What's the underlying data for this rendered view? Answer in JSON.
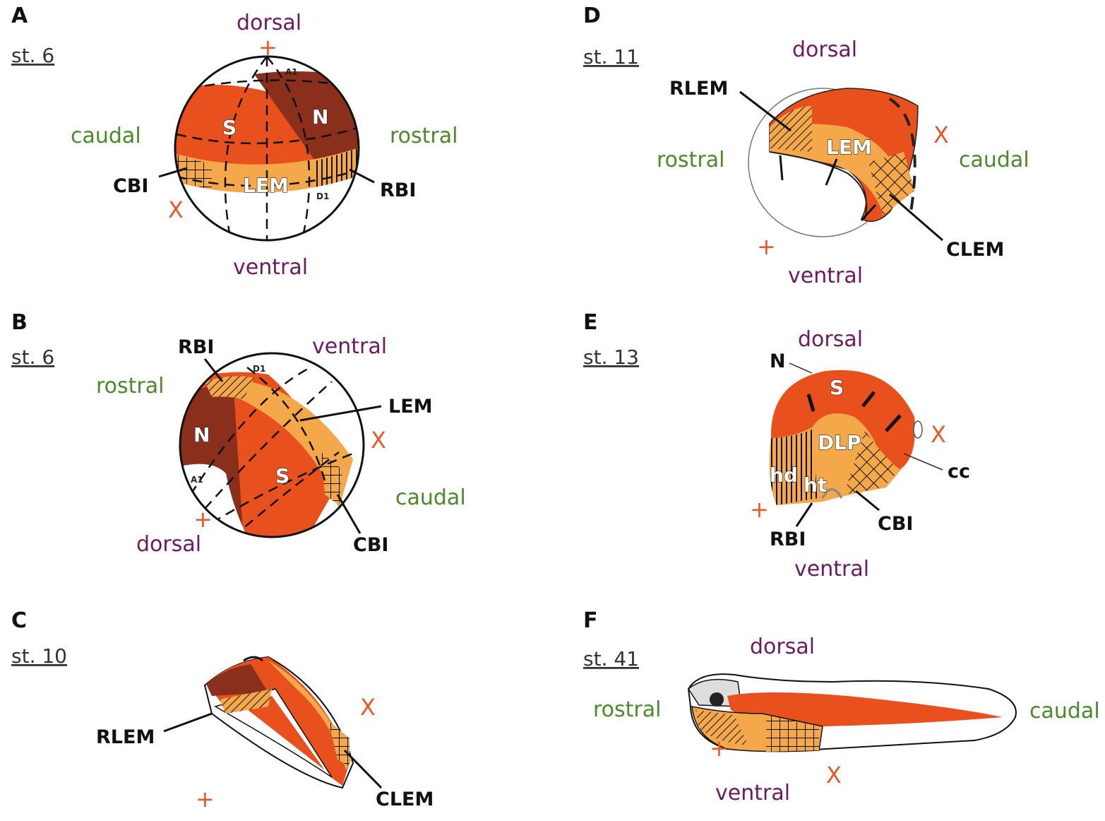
{
  "colors": {
    "somite_orange": "#e8501e",
    "notochord_brown": "#8a2f1c",
    "lem_light_orange": "#f4a84a",
    "axis_purple": "#6e1a63",
    "axis_green": "#4a8a2a",
    "marker_orange": "#e8582a"
  },
  "panels": {
    "A": {
      "letter": "A",
      "stage": "st. 6",
      "dorsal": "dorsal",
      "ventral": "ventral",
      "left": "caudal",
      "right": "rostral",
      "plus": "+",
      "x": "X",
      "S": "S",
      "N": "N",
      "LEM": "LEM",
      "CBI": "CBI",
      "RBI": "RBI",
      "A1": "A1",
      "D1": "D1"
    },
    "B": {
      "letter": "B",
      "stage": "st. 6",
      "ventral": "ventral",
      "dorsal": "dorsal",
      "rostral": "rostral",
      "caudal": "caudal",
      "plus": "+",
      "x": "X",
      "RBI": "RBI",
      "LEM": "LEM",
      "CBI": "CBI",
      "N": "N",
      "S": "S",
      "A1": "A1",
      "D1": "D1"
    },
    "C": {
      "letter": "C",
      "stage": "st. 10",
      "RLEM": "RLEM",
      "CLEM": "CLEM",
      "plus": "+",
      "x": "X"
    },
    "D": {
      "letter": "D",
      "stage": "st. 11",
      "dorsal": "dorsal",
      "ventral": "ventral",
      "rostral": "rostral",
      "caudal": "caudal",
      "RLEM": "RLEM",
      "LEM": "LEM",
      "CLEM": "CLEM",
      "plus": "+",
      "x": "X"
    },
    "E": {
      "letter": "E",
      "stage": "st. 13",
      "dorsal": "dorsal",
      "ventral": "ventral",
      "N": "N",
      "S": "S",
      "DLP": "DLP",
      "cc": "cc",
      "hd": "hd",
      "ht": "ht",
      "RBI": "RBI",
      "CBI": "CBI",
      "plus": "+",
      "x": "X"
    },
    "F": {
      "letter": "F",
      "stage": "st. 41",
      "dorsal": "dorsal",
      "ventral": "ventral",
      "rostral": "rostral",
      "caudal": "caudal",
      "plus": "+",
      "x": "X"
    }
  }
}
